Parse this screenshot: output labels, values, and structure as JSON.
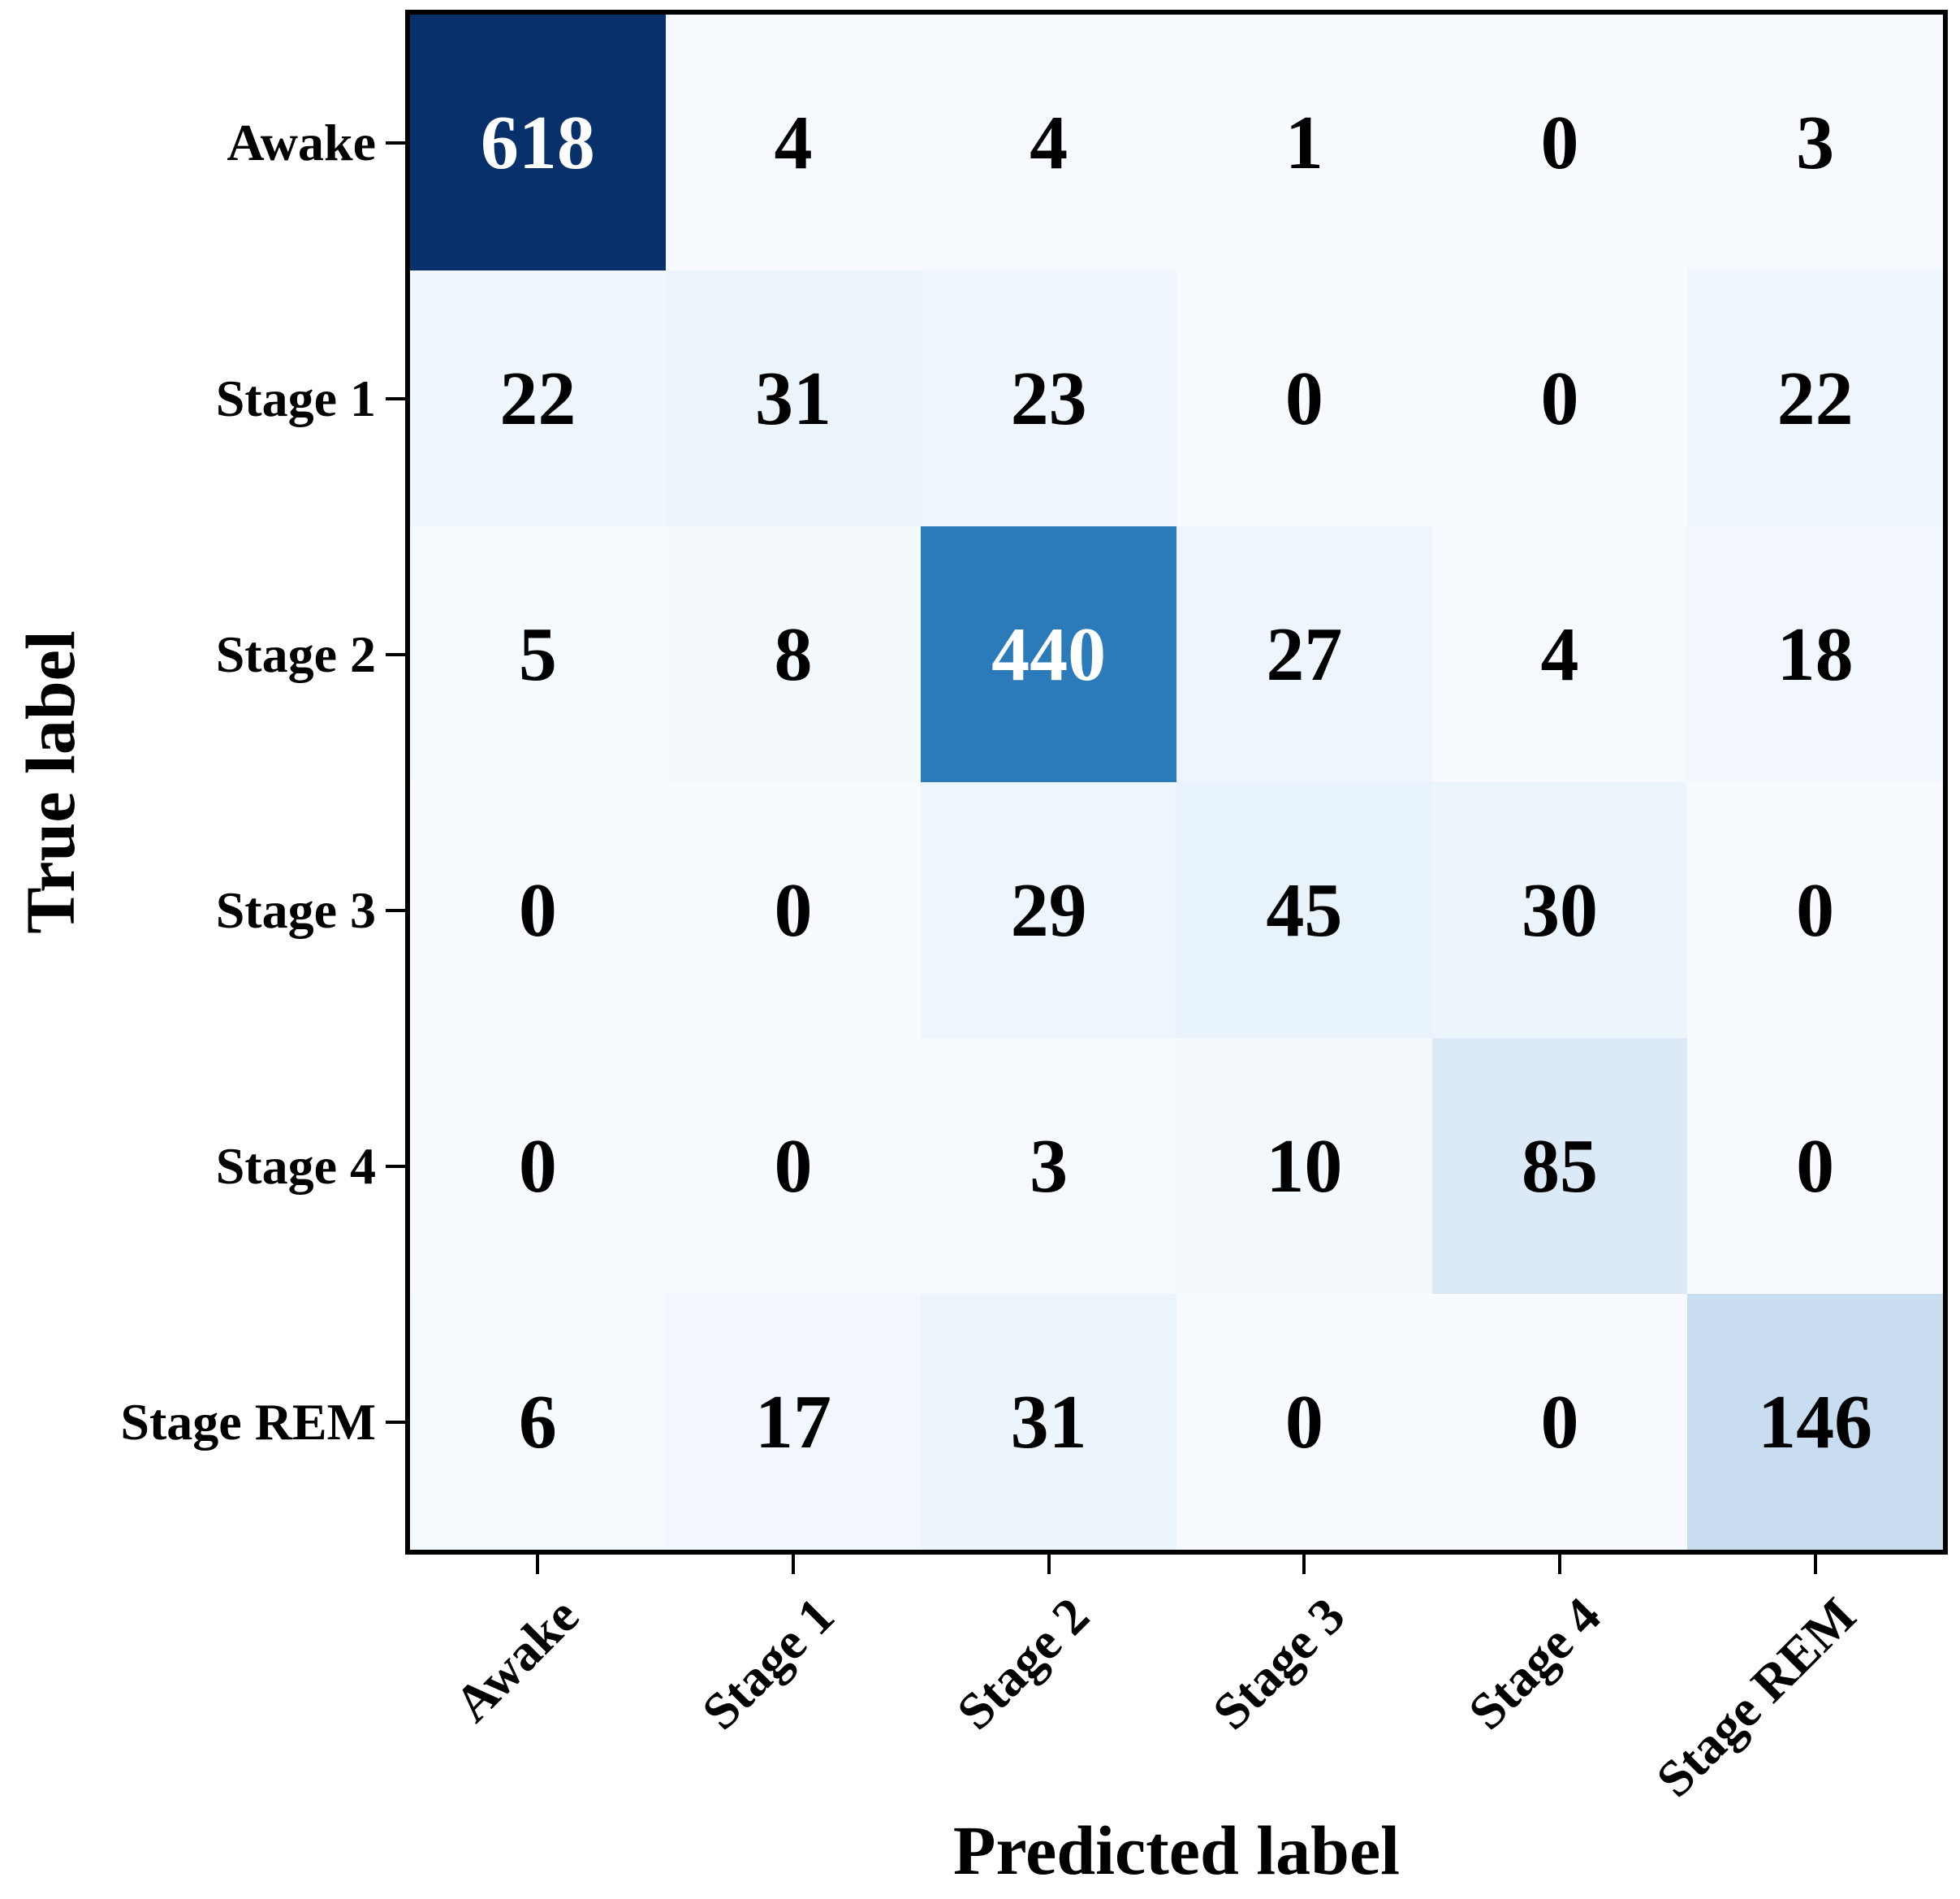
{
  "figure": {
    "background": "#ffffff",
    "axis_color": "#000000"
  },
  "chart_data": {
    "type": "heatmap",
    "title": "",
    "xlabel": "Predicted label",
    "ylabel": "True label",
    "x_tick_labels": [
      "Awake",
      "Stage 1",
      "Stage 2",
      "Stage 3",
      "Stage 4",
      "Stage REM"
    ],
    "y_tick_labels": [
      "Awake",
      "Stage 1",
      "Stage 2",
      "Stage 3",
      "Stage 4",
      "Stage REM"
    ],
    "matrix": [
      [
        618,
        4,
        4,
        1,
        0,
        3
      ],
      [
        22,
        31,
        23,
        0,
        0,
        22
      ],
      [
        5,
        8,
        440,
        27,
        4,
        18
      ],
      [
        0,
        0,
        29,
        45,
        30,
        0
      ],
      [
        0,
        0,
        3,
        10,
        85,
        0
      ],
      [
        6,
        17,
        31,
        0,
        0,
        146
      ]
    ],
    "vmin": 0,
    "vmax": 618,
    "colormap_name": "Blues",
    "colormap_stops": [
      "#f7fbff",
      "#deebf7",
      "#c6dbef",
      "#9ecae1",
      "#6baed6",
      "#4292c6",
      "#2171b5",
      "#08519c",
      "#08306b"
    ],
    "cell_text_color_low": "#000000",
    "cell_text_color_high": "#ffffff",
    "grid": false,
    "legend_position": "none"
  }
}
